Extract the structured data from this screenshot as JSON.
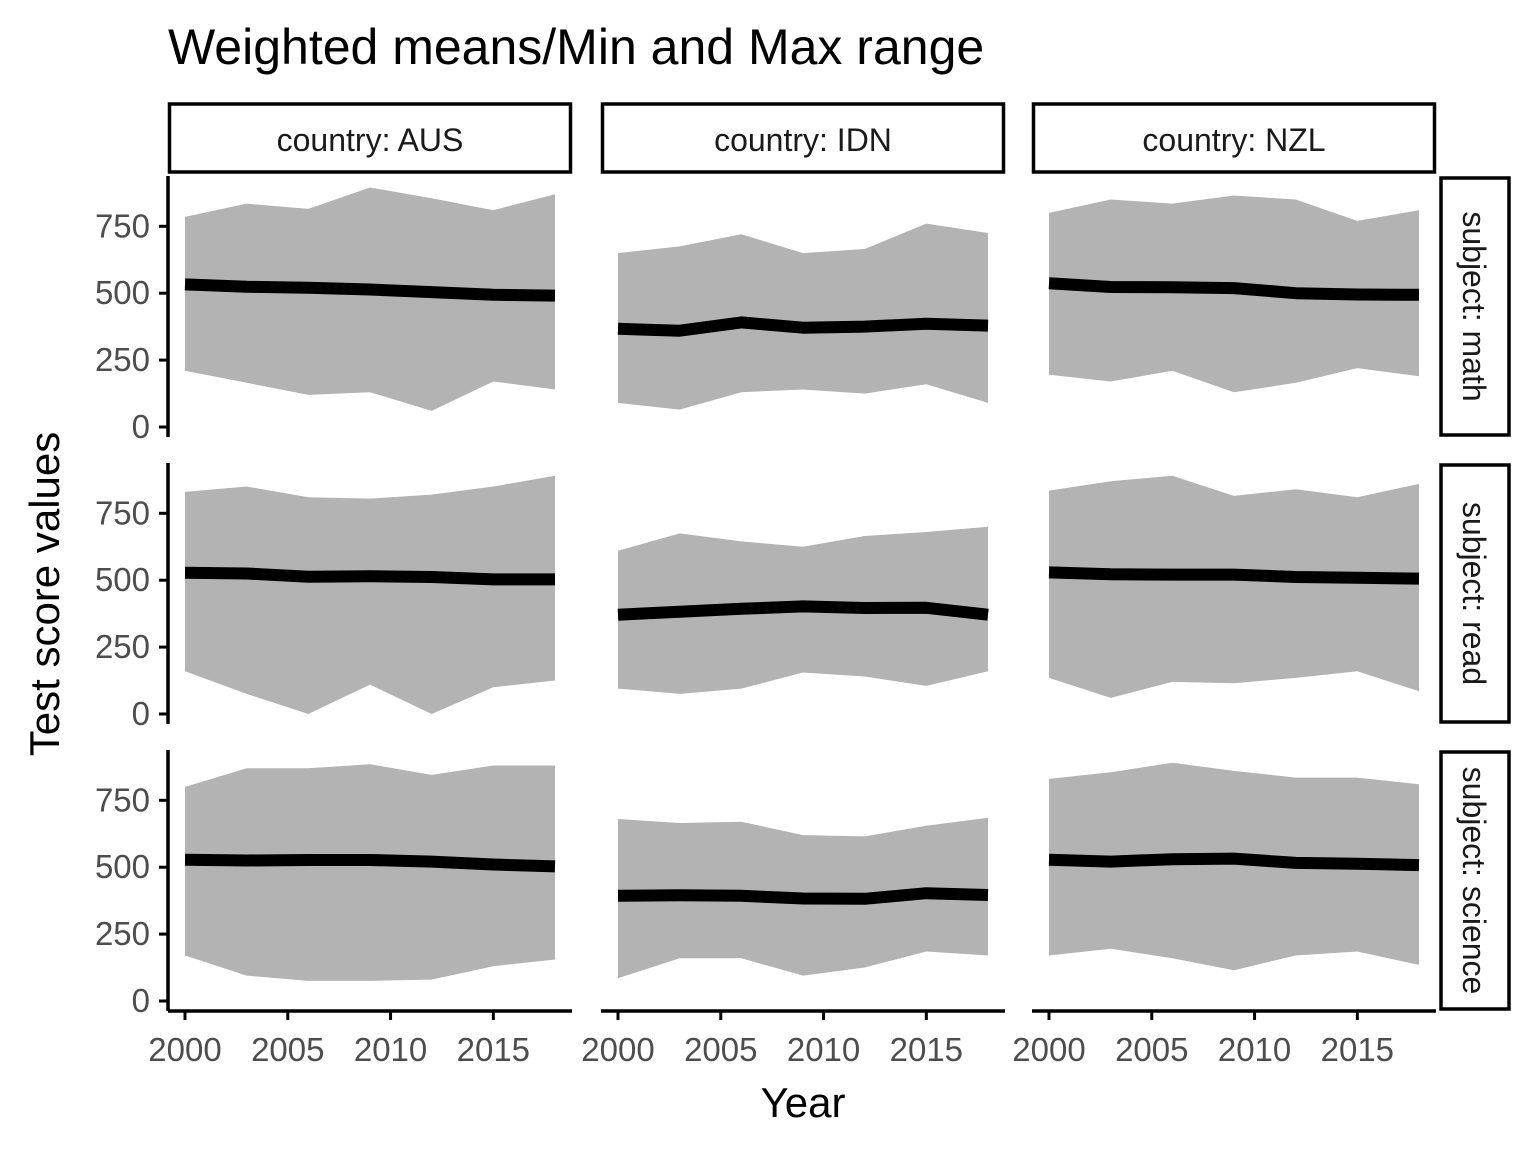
{
  "chart_data": {
    "type": "area",
    "title": "Weighted means/Min and Max range",
    "xlabel": "Year",
    "ylabel": "Test score values",
    "xlim": [
      2000,
      2018
    ],
    "ylim": [
      0,
      900
    ],
    "x_ticks": [
      "2000",
      "2005",
      "2010",
      "2015"
    ],
    "y_ticks": [
      "0",
      "250",
      "500",
      "750"
    ],
    "x_tick_values": [
      2000,
      2005,
      2010,
      2015
    ],
    "y_tick_values": [
      0,
      250,
      500,
      750
    ],
    "grid": false,
    "col_strips": [
      "country: AUS",
      "country: IDN",
      "country: NZL"
    ],
    "row_strips": [
      "subject: math",
      "subject: read",
      "subject: science"
    ],
    "x": [
      2000,
      2003,
      2006,
      2009,
      2012,
      2015,
      2018
    ],
    "colors": {
      "ribbon": "#b3b3b3",
      "line": "#000000"
    },
    "panels": [
      {
        "country": "AUS",
        "subject": "math",
        "mean": [
          533,
          524,
          520,
          514,
          504,
          494,
          491
        ],
        "min": [
          210,
          165,
          120,
          130,
          60,
          170,
          140
        ],
        "max": [
          785,
          835,
          815,
          895,
          855,
          810,
          870
        ]
      },
      {
        "country": "IDN",
        "subject": "math",
        "mean": [
          367,
          360,
          391,
          371,
          375,
          386,
          379
        ],
        "min": [
          90,
          65,
          130,
          140,
          125,
          160,
          90
        ],
        "max": [
          650,
          675,
          720,
          650,
          665,
          760,
          725
        ]
      },
      {
        "country": "NZL",
        "subject": "math",
        "mean": [
          537,
          523,
          522,
          519,
          500,
          495,
          494
        ],
        "min": [
          195,
          170,
          210,
          130,
          165,
          220,
          190
        ],
        "max": [
          800,
          850,
          835,
          865,
          850,
          770,
          810
        ]
      },
      {
        "country": "AUS",
        "subject": "read",
        "mean": [
          528,
          525,
          513,
          515,
          512,
          503,
          503
        ],
        "min": [
          160,
          75,
          0,
          110,
          0,
          100,
          125
        ],
        "max": [
          830,
          850,
          810,
          805,
          820,
          850,
          890
        ]
      },
      {
        "country": "IDN",
        "subject": "read",
        "mean": [
          371,
          382,
          393,
          402,
          396,
          397,
          371
        ],
        "min": [
          95,
          75,
          95,
          155,
          140,
          105,
          160
        ],
        "max": [
          610,
          675,
          645,
          625,
          665,
          680,
          700
        ]
      },
      {
        "country": "NZL",
        "subject": "read",
        "mean": [
          529,
          522,
          521,
          521,
          512,
          509,
          506
        ],
        "min": [
          135,
          60,
          120,
          115,
          135,
          160,
          85
        ],
        "max": [
          835,
          870,
          890,
          815,
          840,
          810,
          860
        ]
      },
      {
        "country": "AUS",
        "subject": "science",
        "mean": [
          528,
          525,
          527,
          527,
          521,
          510,
          503
        ],
        "min": [
          170,
          95,
          75,
          75,
          80,
          130,
          155
        ],
        "max": [
          800,
          870,
          870,
          885,
          845,
          880,
          880
        ]
      },
      {
        "country": "IDN",
        "subject": "science",
        "mean": [
          393,
          395,
          393,
          383,
          382,
          403,
          396
        ],
        "min": [
          85,
          160,
          160,
          95,
          125,
          185,
          170
        ],
        "max": [
          680,
          665,
          670,
          620,
          615,
          655,
          685
        ]
      },
      {
        "country": "NZL",
        "subject": "science",
        "mean": [
          528,
          521,
          530,
          532,
          516,
          513,
          508
        ],
        "min": [
          170,
          195,
          160,
          115,
          170,
          185,
          135
        ],
        "max": [
          830,
          855,
          890,
          860,
          835,
          835,
          810
        ]
      }
    ]
  }
}
